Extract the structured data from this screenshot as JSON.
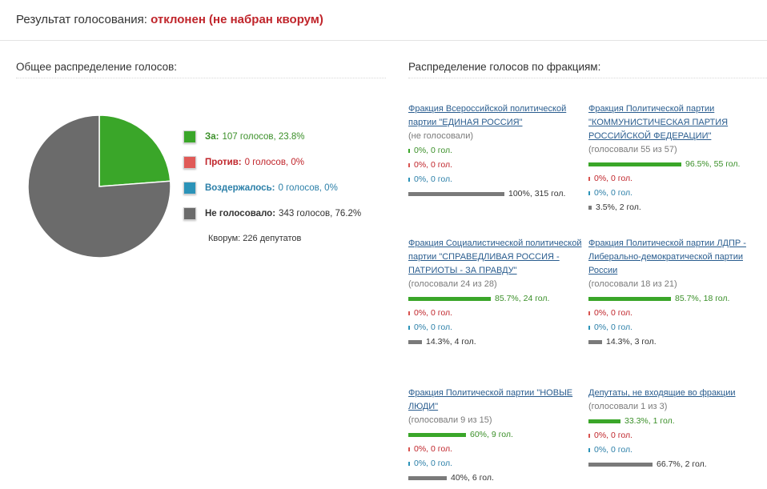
{
  "header": {
    "prefix": "Результат голосования:",
    "status": "отклонен (не набран кворум)"
  },
  "overall": {
    "title": "Общее распределение голосов:",
    "legend": [
      {
        "key": "for",
        "label": "За:",
        "text": "107 голосов, 23.8%",
        "percent": 23.8,
        "color": "#3aa629",
        "label_color": "#3a8f28",
        "text_color": "#3a8f28"
      },
      {
        "key": "against",
        "label": "Против:",
        "text": "0 голосов, 0%",
        "percent": 0,
        "color": "#e05a57",
        "label_color": "#c0252b",
        "text_color": "#c0252b"
      },
      {
        "key": "abstain",
        "label": "Воздержалось:",
        "text": "0 голосов, 0%",
        "percent": 0,
        "color": "#2b93b8",
        "label_color": "#2b7fa8",
        "text_color": "#2b7fa8"
      },
      {
        "key": "absent",
        "label": "Не голосовало:",
        "text": "343 голосов, 76.2%",
        "percent": 76.2,
        "color": "#6b6b6b",
        "label_color": "#333333",
        "text_color": "#333333"
      }
    ],
    "quorum": "Кворум: 226 депутатов"
  },
  "chart_data": {
    "type": "pie",
    "categories": [
      "За",
      "Против",
      "Воздержалось",
      "Не голосовало"
    ],
    "values": [
      23.8,
      0,
      0,
      76.2
    ],
    "colors": [
      "#3aa629",
      "#e05a57",
      "#2b93b8",
      "#6b6b6b"
    ]
  },
  "factions_title": "Распределение голосов по фракциям:",
  "factions": [
    {
      "name": "Фракция Всероссийской политической партии \"ЕДИНАЯ РОССИЯ\"",
      "meta": "(не голосовали)",
      "votes": [
        {
          "key": "for",
          "percent": 0,
          "text": "0%, 0 гол."
        },
        {
          "key": "against",
          "percent": 0,
          "text": "0%, 0 гол."
        },
        {
          "key": "abstain",
          "percent": 0,
          "text": "0%, 0 гол."
        },
        {
          "key": "absent",
          "percent": 100,
          "text": "100%, 315 гол."
        }
      ]
    },
    {
      "name": "Фракция Политической партии \"КОММУНИСТИЧЕСКАЯ ПАРТИЯ РОССИЙСКОЙ ФЕДЕРАЦИИ\"",
      "meta": "(голосовали 55 из 57)",
      "votes": [
        {
          "key": "for",
          "percent": 96.5,
          "text": "96.5%, 55 гол."
        },
        {
          "key": "against",
          "percent": 0,
          "text": "0%, 0 гол."
        },
        {
          "key": "abstain",
          "percent": 0,
          "text": "0%, 0 гол."
        },
        {
          "key": "absent",
          "percent": 3.5,
          "text": "3.5%, 2 гол."
        }
      ]
    },
    {
      "name": "Фракция Социалистической политической партии \"СПРАВЕДЛИВАЯ РОССИЯ - ПАТРИОТЫ - ЗА ПРАВДУ\"",
      "meta": "(голосовали 24 из 28)",
      "votes": [
        {
          "key": "for",
          "percent": 85.7,
          "text": "85.7%, 24 гол."
        },
        {
          "key": "against",
          "percent": 0,
          "text": "0%, 0 гол."
        },
        {
          "key": "abstain",
          "percent": 0,
          "text": "0%, 0 гол."
        },
        {
          "key": "absent",
          "percent": 14.3,
          "text": "14.3%, 4 гол."
        }
      ]
    },
    {
      "name": "Фракция Политической партии ЛДПР - Либерально-демократической партии России",
      "meta": "(голосовали 18 из 21)",
      "votes": [
        {
          "key": "for",
          "percent": 85.7,
          "text": "85.7%, 18 гол."
        },
        {
          "key": "against",
          "percent": 0,
          "text": "0%, 0 гол."
        },
        {
          "key": "abstain",
          "percent": 0,
          "text": "0%, 0 гол."
        },
        {
          "key": "absent",
          "percent": 14.3,
          "text": "14.3%, 3 гол."
        }
      ]
    },
    {
      "name": "Фракция Политической партии \"НОВЫЕ ЛЮДИ\"",
      "meta": "(голосовали 9 из 15)",
      "votes": [
        {
          "key": "for",
          "percent": 60,
          "text": "60%, 9 гол."
        },
        {
          "key": "against",
          "percent": 0,
          "text": "0%, 0 гол."
        },
        {
          "key": "abstain",
          "percent": 0,
          "text": "0%, 0 гол."
        },
        {
          "key": "absent",
          "percent": 40,
          "text": "40%, 6 гол."
        }
      ]
    },
    {
      "name": "Депутаты, не входящие во фракции",
      "meta": "(голосовали 1 из 3)",
      "votes": [
        {
          "key": "for",
          "percent": 33.3,
          "text": "33.3%, 1 гол."
        },
        {
          "key": "against",
          "percent": 0,
          "text": "0%, 0 гол."
        },
        {
          "key": "abstain",
          "percent": 0,
          "text": "0%, 0 гол."
        },
        {
          "key": "absent",
          "percent": 66.7,
          "text": "66.7%, 2 гол."
        }
      ]
    }
  ]
}
